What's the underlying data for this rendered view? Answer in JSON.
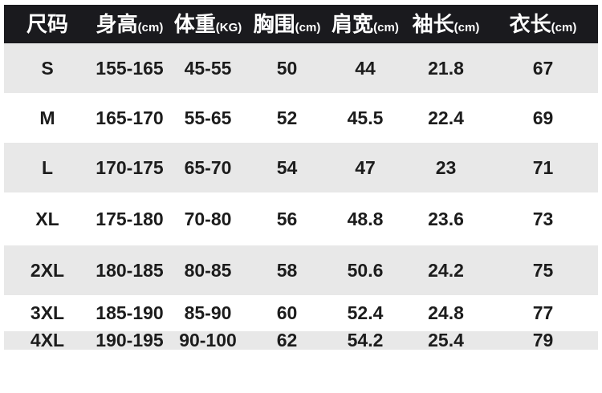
{
  "chart_data": {
    "type": "table",
    "columns": [
      {
        "label": "尺码",
        "unit": ""
      },
      {
        "label": "身高",
        "unit": "(cm)"
      },
      {
        "label": "体重",
        "unit": "(KG)"
      },
      {
        "label": "胸围",
        "unit": "(cm)"
      },
      {
        "label": "肩宽",
        "unit": "(cm)"
      },
      {
        "label": "袖长",
        "unit": "(cm)"
      },
      {
        "label": "衣长",
        "unit": "(cm)"
      }
    ],
    "rows": [
      {
        "cells": [
          "S",
          "155-165",
          "45-55",
          "50",
          "44",
          "21.8",
          "67"
        ]
      },
      {
        "cells": [
          "M",
          "165-170",
          "55-65",
          "52",
          "45.5",
          "22.4",
          "69"
        ]
      },
      {
        "cells": [
          "L",
          "170-175",
          "65-70",
          "54",
          "47",
          "23",
          "71"
        ]
      },
      {
        "cells": [
          "XL",
          "175-180",
          "70-80",
          "56",
          "48.8",
          "23.6",
          "73"
        ]
      },
      {
        "cells": [
          "2XL",
          "180-185",
          "80-85",
          "58",
          "50.6",
          "24.2",
          "75"
        ]
      },
      {
        "cells": [
          "3XL",
          "185-190",
          "85-90",
          "60",
          "52.4",
          "24.8",
          "77"
        ]
      },
      {
        "cells": [
          "4XL",
          "190-195",
          "90-100",
          "62",
          "54.2",
          "25.4",
          "79"
        ]
      }
    ],
    "layout": {
      "legend": "none",
      "grid": "off",
      "banding": "alternate rows shaded"
    }
  },
  "colors": {
    "page_bg": "#ffffff",
    "header_bg": "#1a1a1e",
    "header_text": "#ffffff",
    "alt_row_bg": "#e8e8e8",
    "body_text": "#1c1c1c"
  }
}
